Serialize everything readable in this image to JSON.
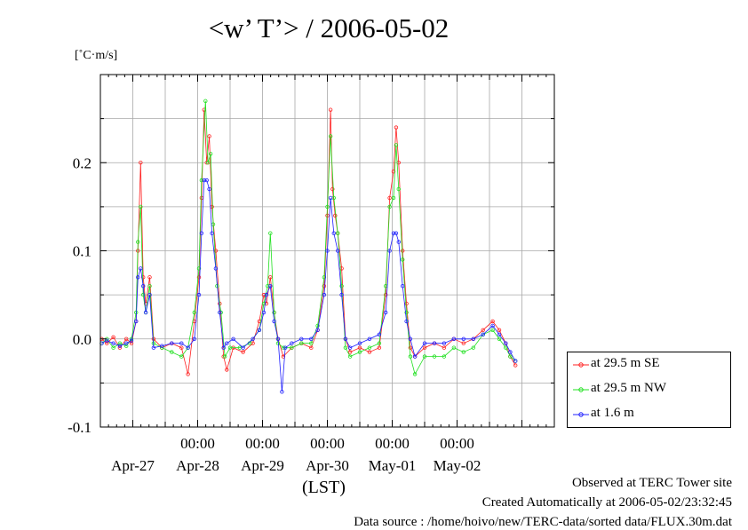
{
  "title": "<w’ T’> / 2006-05-02",
  "unit_label": "[˚C·m/s]",
  "xaxis_label": "(LST)",
  "footer": {
    "observed": "Observed at TERC Tower site",
    "created": "Created Automatically at 2006-05-02/23:32:45",
    "source": "Data source : /home/hoivo/new/TERC-data/sorted  data/FLUX.30m.dat"
  },
  "chart_data": {
    "type": "line",
    "title": "<w’ T’> / 2006-05-02",
    "ylabel": "[˚C·m/s]",
    "xlabel": "(LST)",
    "ylim": [
      -0.1,
      0.3
    ],
    "yticks": [
      -0.1,
      0.0,
      0.1,
      0.2
    ],
    "ytick_labels": [
      "-0.1",
      "0.0",
      "0.1",
      "0.2"
    ],
    "xlim_days": [
      -0.5,
      6.5
    ],
    "xtick_time_label": "00:00",
    "date_labels": [
      "Apr-27",
      "Apr-28",
      "Apr-29",
      "Apr-30",
      "May-01",
      "May-02"
    ],
    "grid": true,
    "legend_position": "bottom-right outside",
    "legend": [
      {
        "name": "at 29.5 m SE",
        "color": "#ff2020"
      },
      {
        "name": "at 29.5 m NW",
        "color": "#20e020"
      },
      {
        "name": "at 1.6 m",
        "color": "#2020ff"
      }
    ],
    "series": [
      {
        "name": "at 29.5 m SE",
        "color": "#ff2020",
        "points": [
          [
            -0.48,
            0.0
          ],
          [
            -0.4,
            -0.005
          ],
          [
            -0.3,
            0.002
          ],
          [
            -0.2,
            -0.01
          ],
          [
            -0.1,
            0.0
          ],
          [
            -0.02,
            -0.005
          ],
          [
            0.05,
            0.02
          ],
          [
            0.08,
            0.1
          ],
          [
            0.12,
            0.2
          ],
          [
            0.16,
            0.07
          ],
          [
            0.2,
            0.04
          ],
          [
            0.26,
            0.07
          ],
          [
            0.32,
            0.0
          ],
          [
            0.45,
            -0.01
          ],
          [
            0.6,
            -0.005
          ],
          [
            0.75,
            -0.01
          ],
          [
            0.85,
            -0.04
          ],
          [
            0.95,
            0.02
          ],
          [
            1.02,
            0.07
          ],
          [
            1.06,
            0.16
          ],
          [
            1.1,
            0.26
          ],
          [
            1.14,
            0.2
          ],
          [
            1.18,
            0.23
          ],
          [
            1.22,
            0.15
          ],
          [
            1.28,
            0.1
          ],
          [
            1.34,
            0.04
          ],
          [
            1.4,
            -0.02
          ],
          [
            1.45,
            -0.035
          ],
          [
            1.55,
            -0.01
          ],
          [
            1.7,
            -0.015
          ],
          [
            1.85,
            -0.005
          ],
          [
            1.95,
            0.02
          ],
          [
            2.02,
            0.05
          ],
          [
            2.06,
            0.04
          ],
          [
            2.12,
            0.07
          ],
          [
            2.18,
            0.03
          ],
          [
            2.24,
            0.0
          ],
          [
            2.32,
            -0.02
          ],
          [
            2.45,
            -0.01
          ],
          [
            2.6,
            -0.005
          ],
          [
            2.75,
            -0.01
          ],
          [
            2.85,
            0.01
          ],
          [
            2.95,
            0.06
          ],
          [
            3.0,
            0.14
          ],
          [
            3.05,
            0.26
          ],
          [
            3.08,
            0.17
          ],
          [
            3.12,
            0.14
          ],
          [
            3.16,
            0.12
          ],
          [
            3.22,
            0.08
          ],
          [
            3.28,
            0.0
          ],
          [
            3.35,
            -0.015
          ],
          [
            3.5,
            -0.01
          ],
          [
            3.65,
            -0.015
          ],
          [
            3.8,
            -0.01
          ],
          [
            3.9,
            0.05
          ],
          [
            3.96,
            0.16
          ],
          [
            4.02,
            0.19
          ],
          [
            4.06,
            0.24
          ],
          [
            4.1,
            0.2
          ],
          [
            4.16,
            0.1
          ],
          [
            4.22,
            0.04
          ],
          [
            4.28,
            -0.01
          ],
          [
            4.35,
            -0.02
          ],
          [
            4.5,
            -0.01
          ],
          [
            4.65,
            -0.005
          ],
          [
            4.8,
            -0.01
          ],
          [
            4.95,
            0.0
          ],
          [
            5.1,
            -0.005
          ],
          [
            5.25,
            0.0
          ],
          [
            5.4,
            0.01
          ],
          [
            5.55,
            0.02
          ],
          [
            5.65,
            0.01
          ],
          [
            5.75,
            -0.005
          ],
          [
            5.82,
            -0.02
          ],
          [
            5.9,
            -0.03
          ]
        ]
      },
      {
        "name": "at 29.5 m NW",
        "color": "#20e020",
        "points": [
          [
            -0.48,
            -0.005
          ],
          [
            -0.4,
            0.0
          ],
          [
            -0.3,
            -0.01
          ],
          [
            -0.2,
            -0.005
          ],
          [
            -0.1,
            -0.008
          ],
          [
            -0.02,
            0.0
          ],
          [
            0.05,
            0.03
          ],
          [
            0.08,
            0.11
          ],
          [
            0.12,
            0.15
          ],
          [
            0.16,
            0.05
          ],
          [
            0.2,
            0.03
          ],
          [
            0.26,
            0.06
          ],
          [
            0.32,
            -0.005
          ],
          [
            0.45,
            -0.01
          ],
          [
            0.6,
            -0.015
          ],
          [
            0.75,
            -0.02
          ],
          [
            0.85,
            -0.01
          ],
          [
            0.95,
            0.03
          ],
          [
            1.02,
            0.08
          ],
          [
            1.06,
            0.18
          ],
          [
            1.12,
            0.27
          ],
          [
            1.16,
            0.2
          ],
          [
            1.2,
            0.21
          ],
          [
            1.24,
            0.13
          ],
          [
            1.3,
            0.06
          ],
          [
            1.36,
            0.03
          ],
          [
            1.42,
            -0.02
          ],
          [
            1.5,
            -0.01
          ],
          [
            1.65,
            -0.01
          ],
          [
            1.8,
            -0.005
          ],
          [
            1.95,
            0.01
          ],
          [
            2.02,
            0.04
          ],
          [
            2.08,
            0.06
          ],
          [
            2.12,
            0.12
          ],
          [
            2.18,
            0.03
          ],
          [
            2.24,
            -0.005
          ],
          [
            2.32,
            -0.01
          ],
          [
            2.45,
            -0.01
          ],
          [
            2.6,
            -0.005
          ],
          [
            2.75,
            -0.005
          ],
          [
            2.85,
            0.015
          ],
          [
            2.95,
            0.07
          ],
          [
            3.0,
            0.15
          ],
          [
            3.05,
            0.23
          ],
          [
            3.1,
            0.16
          ],
          [
            3.16,
            0.12
          ],
          [
            3.22,
            0.06
          ],
          [
            3.28,
            -0.01
          ],
          [
            3.35,
            -0.02
          ],
          [
            3.5,
            -0.015
          ],
          [
            3.65,
            -0.01
          ],
          [
            3.8,
            -0.005
          ],
          [
            3.9,
            0.06
          ],
          [
            3.96,
            0.15
          ],
          [
            4.02,
            0.16
          ],
          [
            4.06,
            0.22
          ],
          [
            4.1,
            0.17
          ],
          [
            4.16,
            0.09
          ],
          [
            4.22,
            0.03
          ],
          [
            4.28,
            -0.02
          ],
          [
            4.35,
            -0.04
          ],
          [
            4.5,
            -0.02
          ],
          [
            4.65,
            -0.02
          ],
          [
            4.8,
            -0.02
          ],
          [
            4.95,
            -0.01
          ],
          [
            5.1,
            -0.015
          ],
          [
            5.25,
            -0.01
          ],
          [
            5.4,
            0.005
          ],
          [
            5.55,
            0.01
          ],
          [
            5.65,
            0.0
          ],
          [
            5.75,
            -0.01
          ],
          [
            5.82,
            -0.02
          ],
          [
            5.9,
            -0.025
          ]
        ]
      },
      {
        "name": "at 1.6 m",
        "color": "#2020ff",
        "points": [
          [
            -0.48,
            -0.005
          ],
          [
            -0.4,
            -0.002
          ],
          [
            -0.3,
            -0.005
          ],
          [
            -0.2,
            -0.008
          ],
          [
            -0.1,
            -0.005
          ],
          [
            -0.02,
            -0.002
          ],
          [
            0.05,
            0.02
          ],
          [
            0.08,
            0.07
          ],
          [
            0.12,
            0.08
          ],
          [
            0.16,
            0.06
          ],
          [
            0.2,
            0.03
          ],
          [
            0.26,
            0.05
          ],
          [
            0.32,
            -0.01
          ],
          [
            0.45,
            -0.008
          ],
          [
            0.6,
            -0.005
          ],
          [
            0.75,
            -0.005
          ],
          [
            0.85,
            -0.01
          ],
          [
            0.95,
            0.0
          ],
          [
            1.02,
            0.05
          ],
          [
            1.06,
            0.12
          ],
          [
            1.1,
            0.18
          ],
          [
            1.14,
            0.18
          ],
          [
            1.18,
            0.17
          ],
          [
            1.22,
            0.12
          ],
          [
            1.28,
            0.08
          ],
          [
            1.34,
            0.03
          ],
          [
            1.4,
            -0.01
          ],
          [
            1.45,
            -0.005
          ],
          [
            1.55,
            0.0
          ],
          [
            1.7,
            -0.01
          ],
          [
            1.85,
            0.0
          ],
          [
            1.95,
            0.01
          ],
          [
            2.02,
            0.03
          ],
          [
            2.06,
            0.05
          ],
          [
            2.12,
            0.06
          ],
          [
            2.18,
            0.02
          ],
          [
            2.24,
            0.0
          ],
          [
            2.3,
            -0.06
          ],
          [
            2.35,
            -0.01
          ],
          [
            2.45,
            -0.005
          ],
          [
            2.6,
            0.0
          ],
          [
            2.75,
            0.0
          ],
          [
            2.85,
            0.01
          ],
          [
            2.95,
            0.05
          ],
          [
            3.0,
            0.1
          ],
          [
            3.05,
            0.16
          ],
          [
            3.1,
            0.12
          ],
          [
            3.16,
            0.1
          ],
          [
            3.22,
            0.05
          ],
          [
            3.28,
            0.0
          ],
          [
            3.35,
            -0.01
          ],
          [
            3.5,
            -0.005
          ],
          [
            3.65,
            0.0
          ],
          [
            3.8,
            0.005
          ],
          [
            3.9,
            0.03
          ],
          [
            3.96,
            0.1
          ],
          [
            4.02,
            0.12
          ],
          [
            4.06,
            0.12
          ],
          [
            4.1,
            0.11
          ],
          [
            4.16,
            0.06
          ],
          [
            4.22,
            0.02
          ],
          [
            4.28,
            0.0
          ],
          [
            4.35,
            -0.02
          ],
          [
            4.5,
            -0.005
          ],
          [
            4.65,
            -0.005
          ],
          [
            4.8,
            -0.005
          ],
          [
            4.95,
            0.0
          ],
          [
            5.1,
            0.0
          ],
          [
            5.25,
            0.0
          ],
          [
            5.4,
            0.005
          ],
          [
            5.55,
            0.015
          ],
          [
            5.65,
            0.005
          ],
          [
            5.75,
            -0.005
          ],
          [
            5.82,
            -0.015
          ],
          [
            5.9,
            -0.025
          ]
        ]
      }
    ]
  }
}
